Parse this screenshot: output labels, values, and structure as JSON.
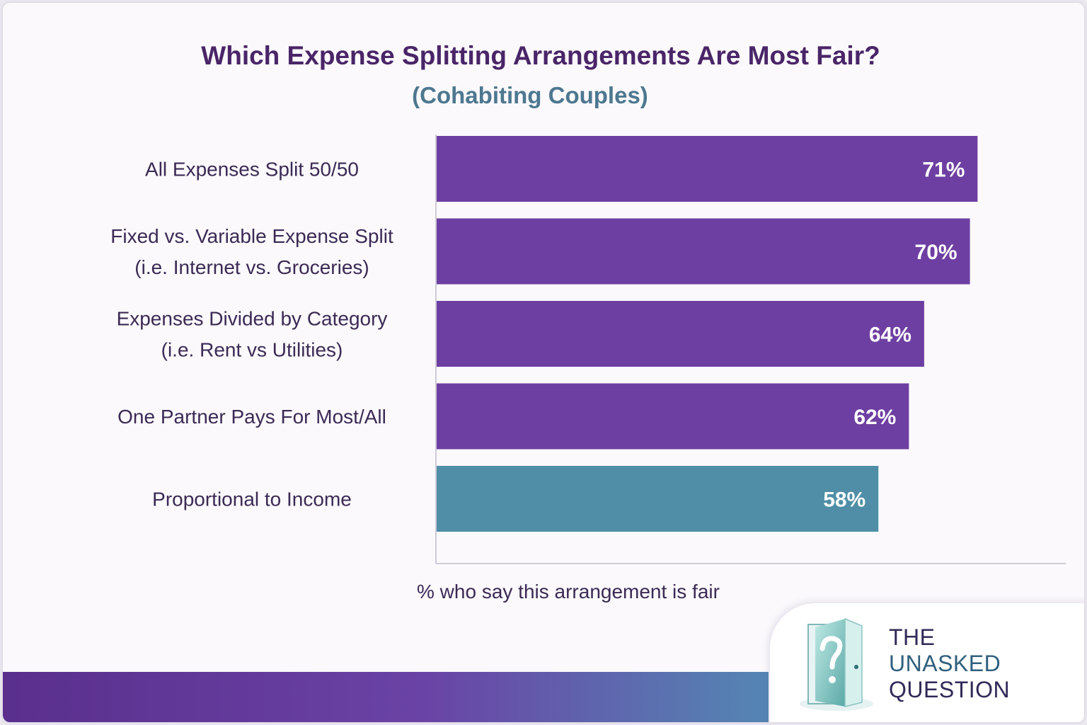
{
  "chart_data": {
    "type": "bar",
    "orientation": "horizontal",
    "title": "Which Expense Splitting Arrangements Are Most Fair?",
    "subtitle": "(Cohabiting Couples)",
    "xlabel": "% who say this arrangement is fair",
    "ylabel": "",
    "xlim": [
      0,
      100
    ],
    "grid": false,
    "categories": [
      [
        "All Expenses Split 50/50"
      ],
      [
        "Fixed vs. Variable Expense Split",
        "(i.e. Internet vs. Groceries)"
      ],
      [
        "Expenses Divided by Category",
        "(i.e. Rent vs Utilities)"
      ],
      [
        "One Partner Pays For Most/All"
      ],
      [
        "Proportional to Income"
      ]
    ],
    "values": [
      71,
      70,
      64,
      62,
      58
    ],
    "value_labels": [
      "71%",
      "70%",
      "64%",
      "62%",
      "58%"
    ],
    "colors": [
      "#6e3fa2",
      "#6e3fa2",
      "#6e3fa2",
      "#6e3fa2",
      "#4f8ea6"
    ]
  },
  "colors": {
    "title": "#4a2568",
    "subtitle": "#4d7790",
    "purple_bar": "#6e3fa2",
    "teal_bar": "#4f8ea6",
    "axis": "#cfcbd8"
  },
  "logo": {
    "line1": "THE",
    "line2": "UNASKED",
    "line3": "QUESTION",
    "icon": "door-question-icon"
  }
}
